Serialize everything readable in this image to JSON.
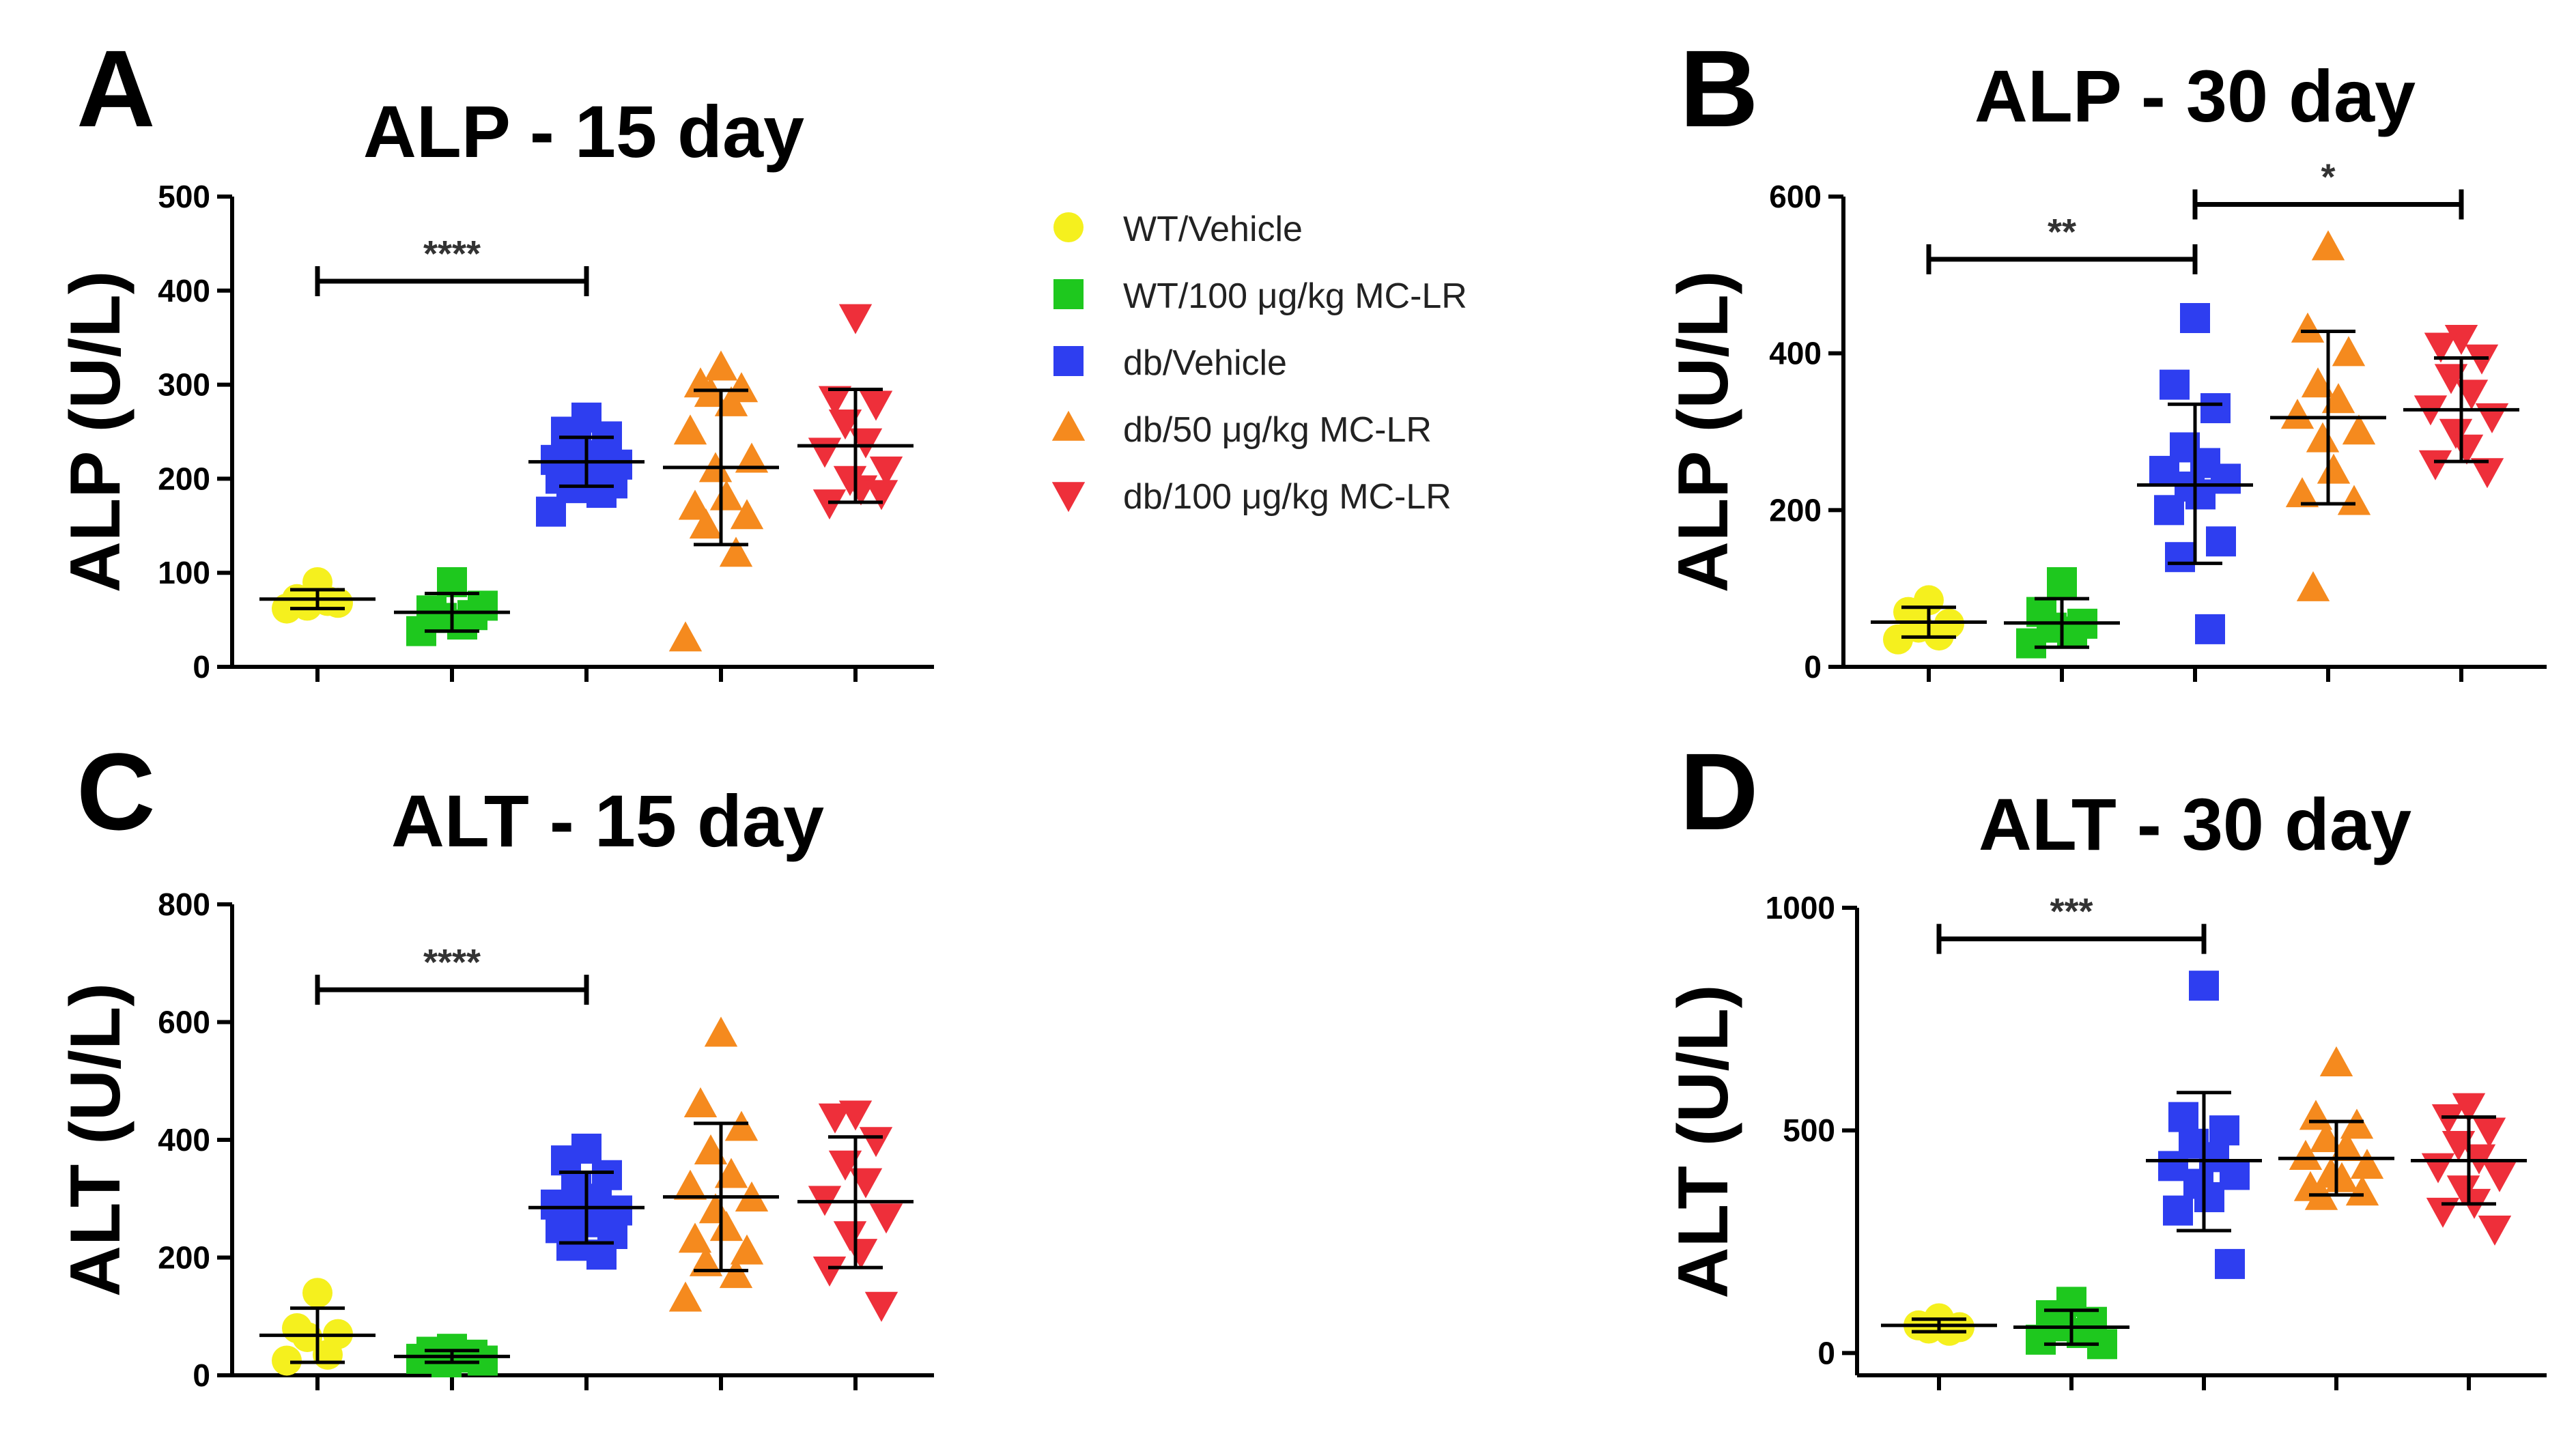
{
  "legend": [
    {
      "name": "WT/Vehicle",
      "color": "#f5f01e",
      "marker": "circle"
    },
    {
      "name": "WT/100 μg/kg MC-LR",
      "color": "#1ec81e",
      "marker": "square"
    },
    {
      "name": "db/Vehicle",
      "color": "#2e3ef0",
      "marker": "square"
    },
    {
      "name": "db/50 μg/kg MC-LR",
      "color": "#f58a1e",
      "marker": "triangle-up"
    },
    {
      "name": "db/100 μg/kg MC-LR",
      "color": "#ee2f3a",
      "marker": "triangle-down"
    }
  ],
  "chart_data": [
    {
      "type": "scatter",
      "panel": "A",
      "title": "ALP - 15 day",
      "ylabel": "ALP (U/L)",
      "ylim": [
        0,
        500
      ],
      "yticks": [
        0,
        100,
        200,
        300,
        400,
        500
      ],
      "series": [
        {
          "name": "WT/Vehicle",
          "values": [
            90,
            72,
            68,
            65,
            70,
            62
          ],
          "mean": 72,
          "sd_low": 62,
          "sd_high": 82
        },
        {
          "name": "WT/100 μg/kg MC-LR",
          "values": [
            90,
            60,
            55,
            52,
            45,
            38,
            65
          ],
          "mean": 58,
          "sd_low": 38,
          "sd_high": 78
        },
        {
          "name": "db/Vehicle",
          "values": [
            265,
            250,
            245,
            235,
            225,
            220,
            215,
            210,
            205,
            200,
            195,
            190,
            185,
            165
          ],
          "mean": 218,
          "sd_low": 192,
          "sd_high": 244
        },
        {
          "name": "db/50 μg/kg MC-LR",
          "values": [
            318,
            300,
            295,
            290,
            280,
            250,
            220,
            210,
            180,
            170,
            160,
            150,
            120,
            30
          ],
          "mean": 212,
          "sd_low": 130,
          "sd_high": 294
        },
        {
          "name": "db/100 μg/kg MC-LR",
          "values": [
            372,
            285,
            280,
            260,
            240,
            230,
            210,
            200,
            190,
            175,
            185
          ],
          "mean": 235,
          "sd_low": 175,
          "sd_high": 295
        }
      ],
      "significance": [
        {
          "from": 0,
          "to": 2,
          "label": "****",
          "y": 410
        }
      ]
    },
    {
      "type": "scatter",
      "panel": "B",
      "title": "ALP - 30 day",
      "ylabel": "ALP (U/L)",
      "ylim": [
        0,
        600
      ],
      "yticks": [
        0,
        200,
        400,
        600
      ],
      "series": [
        {
          "name": "WT/Vehicle",
          "values": [
            85,
            70,
            55,
            50,
            40,
            35
          ],
          "mean": 57,
          "sd_low": 38,
          "sd_high": 76
        },
        {
          "name": "WT/100 μg/kg MC-LR",
          "values": [
            108,
            70,
            55,
            50,
            45,
            30
          ],
          "mean": 56,
          "sd_low": 25,
          "sd_high": 87
        },
        {
          "name": "db/Vehicle",
          "values": [
            445,
            360,
            330,
            280,
            260,
            250,
            240,
            230,
            220,
            200,
            160,
            140,
            48
          ],
          "mean": 232,
          "sd_low": 132,
          "sd_high": 335
        },
        {
          "name": "db/50 μg/kg MC-LR",
          "values": [
            535,
            430,
            400,
            360,
            340,
            320,
            300,
            290,
            250,
            220,
            210,
            100
          ],
          "mean": 318,
          "sd_low": 208,
          "sd_high": 428
        },
        {
          "name": "db/100 μg/kg MC-LR",
          "values": [
            420,
            410,
            395,
            370,
            350,
            330,
            320,
            300,
            280,
            260,
            250
          ],
          "mean": 328,
          "sd_low": 262,
          "sd_high": 394
        }
      ],
      "significance": [
        {
          "from": 0,
          "to": 2,
          "label": "**",
          "y": 520
        },
        {
          "from": 2,
          "to": 4,
          "label": "*",
          "y": 590
        }
      ]
    },
    {
      "type": "scatter",
      "panel": "C",
      "title": "ALT - 15 day",
      "ylabel": "ALT (U/L)",
      "ylim": [
        0,
        800
      ],
      "yticks": [
        0,
        200,
        400,
        600,
        800
      ],
      "series": [
        {
          "name": "WT/Vehicle",
          "values": [
            140,
            80,
            70,
            65,
            35,
            25
          ],
          "mean": 68,
          "sd_low": 22,
          "sd_high": 114
        },
        {
          "name": "WT/100 μg/kg MC-LR",
          "values": [
            45,
            40,
            35,
            32,
            30,
            28,
            25,
            22
          ],
          "mean": 32,
          "sd_low": 22,
          "sd_high": 42
        },
        {
          "name": "db/Vehicle",
          "values": [
            385,
            365,
            340,
            320,
            300,
            290,
            280,
            270,
            260,
            250,
            240,
            220,
            205
          ],
          "mean": 285,
          "sd_low": 225,
          "sd_high": 345
        },
        {
          "name": "db/50 μg/kg MC-LR",
          "values": [
            580,
            460,
            420,
            380,
            340,
            320,
            300,
            280,
            250,
            230,
            210,
            190,
            170,
            130
          ],
          "mean": 303,
          "sd_low": 178,
          "sd_high": 428
        },
        {
          "name": "db/100 μg/kg MC-LR",
          "values": [
            445,
            440,
            400,
            360,
            330,
            300,
            270,
            240,
            210,
            180,
            120
          ],
          "mean": 295,
          "sd_low": 183,
          "sd_high": 405
        }
      ],
      "significance": [
        {
          "from": 0,
          "to": 2,
          "label": "****",
          "y": 655
        }
      ]
    },
    {
      "type": "scatter",
      "panel": "D",
      "title": "ALT - 30 day",
      "ylabel": "ALT (U/L)",
      "ylim": [
        -50,
        1000
      ],
      "yticks": [
        0,
        500,
        1000
      ],
      "series": [
        {
          "name": "WT/Vehicle",
          "values": [
            78,
            62,
            58,
            55,
            50
          ],
          "mean": 62,
          "sd_low": 48,
          "sd_high": 76
        },
        {
          "name": "WT/100 μg/kg MC-LR",
          "values": [
            115,
            85,
            70,
            60,
            45,
            30,
            20
          ],
          "mean": 58,
          "sd_low": 20,
          "sd_high": 96
        },
        {
          "name": "db/Vehicle",
          "values": [
            825,
            530,
            500,
            470,
            440,
            420,
            400,
            380,
            350,
            320,
            200
          ],
          "mean": 432,
          "sd_low": 275,
          "sd_high": 585
        },
        {
          "name": "db/50 μg/kg MC-LR",
          "values": [
            650,
            530,
            510,
            480,
            460,
            440,
            420,
            400,
            390,
            370,
            360,
            350
          ],
          "mean": 437,
          "sd_low": 355,
          "sd_high": 520
        },
        {
          "name": "db/100 μg/kg MC-LR",
          "values": [
            555,
            530,
            500,
            470,
            440,
            420,
            400,
            370,
            340,
            320,
            280
          ],
          "mean": 432,
          "sd_low": 335,
          "sd_high": 530
        }
      ],
      "significance": [
        {
          "from": 0,
          "to": 2,
          "label": "***",
          "y": 930
        }
      ]
    }
  ]
}
